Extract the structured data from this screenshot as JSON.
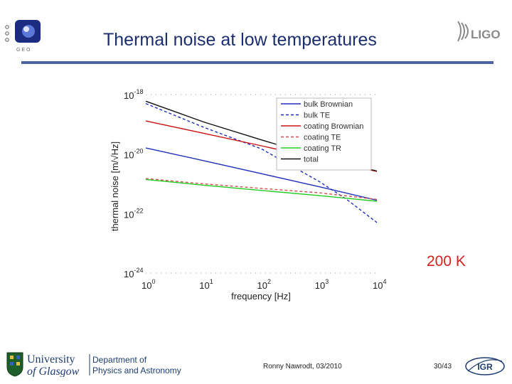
{
  "slide": {
    "title": "Thermal noise at low temperatures",
    "temperature_label": "200 K",
    "footer_author": "Ronny Nawrodt, 03/2010",
    "footer_page": "30/43"
  },
  "logos": {
    "top_right": "LIGO",
    "bottom_left_line1": "University",
    "bottom_left_line2": "of Glasgow",
    "bottom_left_dept1": "Department of",
    "bottom_left_dept2": "Physics and Astronomy",
    "bottom_right": "IGR"
  },
  "colors": {
    "title": "#1c2e6e",
    "rule": "#4e64a0",
    "accent": "#d61f1f"
  },
  "chart_data": {
    "type": "line",
    "title": "",
    "xlabel": "frequency [Hz]",
    "ylabel": "thermal noise [m/√Hz]",
    "xscale": "log",
    "yscale": "log",
    "xlim": [
      1,
      10000
    ],
    "ylim": [
      1e-24,
      1e-18
    ],
    "x_ticks": [
      {
        "base": "10",
        "exp": "0",
        "value": 1
      },
      {
        "base": "10",
        "exp": "1",
        "value": 10
      },
      {
        "base": "10",
        "exp": "2",
        "value": 100
      },
      {
        "base": "10",
        "exp": "3",
        "value": 1000
      },
      {
        "base": "10",
        "exp": "4",
        "value": 10000
      }
    ],
    "y_ticks": [
      {
        "base": "10",
        "exp": "-18",
        "value": 1e-18
      },
      {
        "base": "10",
        "exp": "-20",
        "value": 1e-20
      },
      {
        "base": "10",
        "exp": "-22",
        "value": 1e-22
      },
      {
        "base": "10",
        "exp": "-24",
        "value": 1e-24
      }
    ],
    "legend_position": "top-right",
    "series": [
      {
        "name": "bulk Brownian",
        "color": "#1f2fb8",
        "dash": "solid",
        "x": [
          1,
          10,
          100,
          1000,
          10000
        ],
        "y": [
          1.6e-20,
          6e-21,
          2.2e-21,
          8e-22,
          2.8e-22
        ]
      },
      {
        "name": "bulk TE",
        "color": "#1f2fb8",
        "dash": "dashed",
        "x": [
          1,
          10,
          100,
          1000,
          3000,
          10000
        ],
        "y": [
          5e-19,
          8e-20,
          1.5e-20,
          1.2e-21,
          3e-22,
          5e-23
        ]
      },
      {
        "name": "coating Brownian",
        "color": "#c81414",
        "dash": "solid",
        "x": [
          1,
          10,
          100,
          1000,
          10000
        ],
        "y": [
          1.3e-19,
          5e-20,
          1.9e-20,
          7e-21,
          2.6e-21
        ]
      },
      {
        "name": "coating TE",
        "color": "#d05050",
        "dash": "dashed",
        "x": [
          1,
          10,
          100,
          1000,
          10000
        ],
        "y": [
          1.5e-21,
          1e-21,
          7e-22,
          5e-22,
          3e-22
        ]
      },
      {
        "name": "coating TR",
        "color": "#22cc22",
        "dash": "solid",
        "x": [
          1,
          10,
          100,
          1000,
          10000
        ],
        "y": [
          1.4e-21,
          9e-22,
          6e-22,
          4e-22,
          2.6e-22
        ]
      },
      {
        "name": "total",
        "color": "#111111",
        "dash": "solid",
        "x": [
          1,
          10,
          100,
          1000,
          10000
        ],
        "y": [
          6e-19,
          1.2e-19,
          3e-20,
          8e-21,
          2.7e-21
        ]
      }
    ]
  }
}
